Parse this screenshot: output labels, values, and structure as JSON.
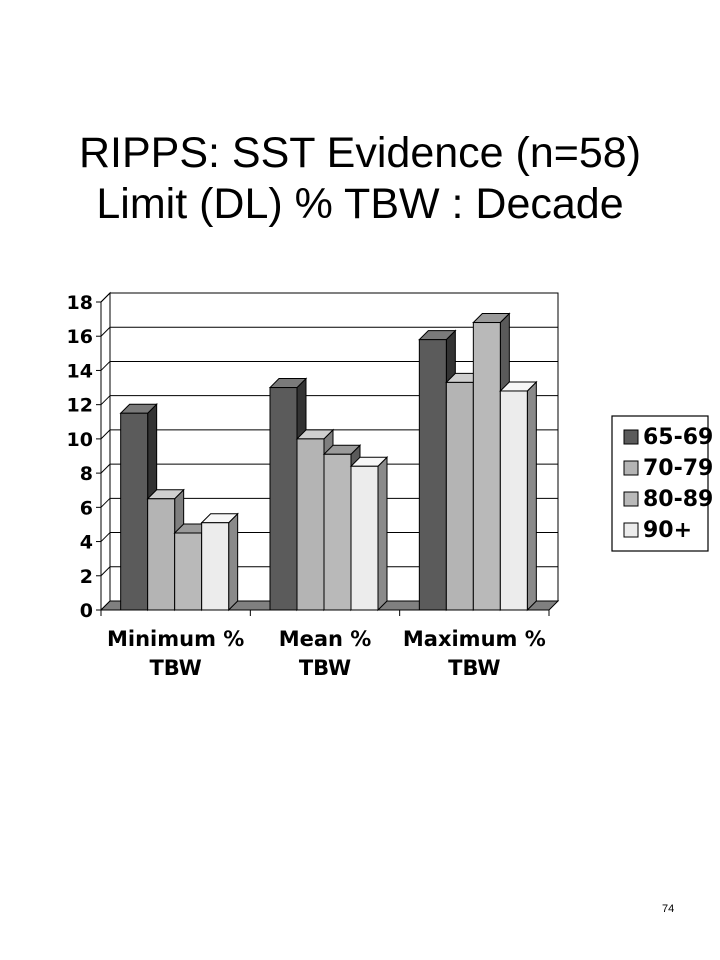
{
  "title": {
    "line1": "RIPPS: SST Evidence  (n=58)",
    "line2": "Limit (DL) % TBW : Decade"
  },
  "page_number": "74",
  "chart_data": {
    "type": "bar",
    "categories": [
      [
        "Minimum %",
        "TBW"
      ],
      [
        "Mean %",
        "TBW"
      ],
      [
        "Maximum %",
        "TBW"
      ]
    ],
    "series": [
      {
        "name": "65-69",
        "values": [
          11.5,
          13.0,
          15.8
        ],
        "color": "#5b5b5b",
        "side": "#333333",
        "top": "#7a7a7a"
      },
      {
        "name": "70-79",
        "values": [
          6.5,
          10.0,
          13.3
        ],
        "color": "#b4b4b4",
        "side": "#7f7f7f",
        "top": "#cfcfcf"
      },
      {
        "name": "80-89",
        "values": [
          4.5,
          9.1,
          16.8
        ],
        "color": "#b9b9b9",
        "side": "#5a5a5a",
        "top": "#9a9a9a"
      },
      {
        "name": "90+",
        "values": [
          5.1,
          8.4,
          12.8
        ],
        "color": "#ececec",
        "side": "#8a8a8a",
        "top": "#f7f7f7"
      }
    ],
    "yticks": [
      0,
      2,
      4,
      6,
      8,
      10,
      12,
      14,
      16,
      18
    ],
    "ylim": [
      0,
      18
    ],
    "grid": true,
    "legend": "right"
  }
}
